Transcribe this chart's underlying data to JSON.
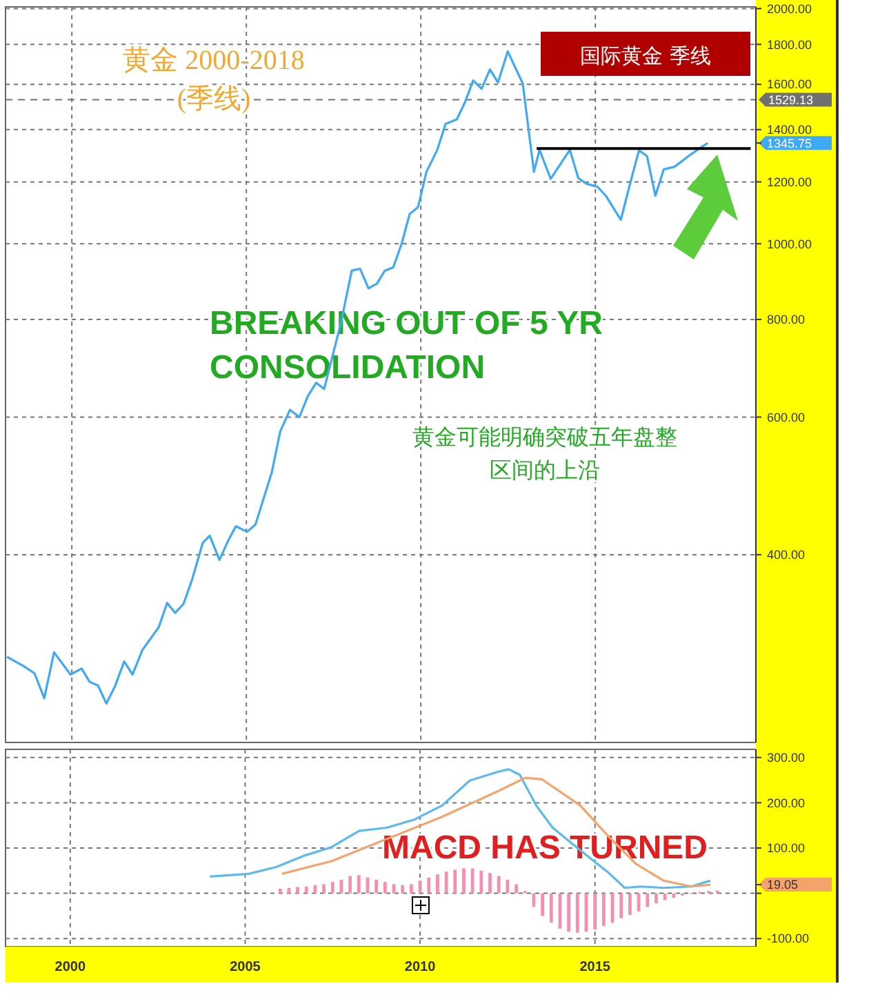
{
  "chart_data": [
    {
      "type": "line",
      "title": "黄金 2000-2018",
      "subtitle": "(季线)",
      "log": true,
      "grid": true,
      "tick_labels": "y",
      "xlim": [
        1998.1,
        2019.6
      ],
      "xticks": [
        2000,
        2005,
        2010,
        2015
      ],
      "ylim": [
        230,
        2010
      ],
      "yticks": [
        {
          "value": 400,
          "label": "400.00"
        },
        {
          "value": 600,
          "label": "600.00"
        },
        {
          "value": 800,
          "label": "800.00"
        },
        {
          "value": 1000,
          "label": "1000.00"
        },
        {
          "value": 1200,
          "label": "1200.00"
        },
        {
          "value": 1345.75,
          "label": "1345.75"
        },
        {
          "value": 1400,
          "label": "1400.00"
        },
        {
          "value": 1600,
          "label": "1600.00"
        },
        {
          "value": 1800,
          "label": "1800.00"
        },
        {
          "value": 2000,
          "label": "2000.00"
        }
      ],
      "series": [
        {
          "color": "#3fa9f5",
          "x": [
            1998.14,
            1998.62,
            1998.93,
            1999.21,
            1999.49,
            1999.96,
            2000.28,
            2000.51,
            2000.75,
            2000.99,
            2001.23,
            2001.5,
            2001.74,
            2002.02,
            2002.49,
            2002.73,
            2002.96,
            2003.2,
            2003.44,
            2003.75,
            2003.95,
            2004.23,
            2004.47,
            2004.7,
            2005.02,
            2005.26,
            2005.73,
            2005.97,
            2006.25,
            2006.52,
            2006.76,
            2007.0,
            2007.23,
            2007.71,
            2008.02,
            2008.26,
            2008.5,
            2008.74,
            2008.97,
            2009.21,
            2009.45,
            2009.68,
            2009.92,
            2010.16,
            2010.47,
            2010.71,
            2011.03,
            2011.26,
            2011.5,
            2011.74,
            2011.98,
            2012.21,
            2012.49,
            2012.92,
            2013.24,
            2013.4,
            2013.72,
            2014.27,
            2014.51,
            2014.74,
            2015.06,
            2015.3,
            2015.73,
            2016.01,
            2016.25,
            2016.48,
            2016.72,
            2016.96,
            2017.27,
            2017.67,
            2017.98,
            2018.22
          ],
          "values": [
            296,
            288,
            282,
            262,
            300,
            281,
            286,
            275,
            272,
            258,
            271,
            292,
            281,
            302,
            323,
            347,
            337,
            346,
            371,
            414,
            423,
            394,
            416,
            435,
            428,
            437,
            510,
            575,
            613,
            600,
            638,
            664,
            652,
            792,
            924,
            929,
            877,
            889,
            924,
            933,
            1000,
            1092,
            1114,
            1236,
            1319,
            1424,
            1443,
            1516,
            1618,
            1579,
            1672,
            1609,
            1763,
            1604,
            1236,
            1319,
            1211,
            1319,
            1214,
            1194,
            1183,
            1152,
            1073,
            1201,
            1317,
            1295,
            1152,
            1245,
            1255,
            1295,
            1324,
            1345.75
          ]
        },
        {
          "color": "#000000",
          "x": [
            2013.32,
            2019.45
          ],
          "values": [
            1324,
            1324
          ]
        }
      ],
      "ref_lines": [
        {
          "axis": "y",
          "value": 1529.13,
          "label": "1529.13",
          "color": "#707070",
          "line_style": "dashed"
        }
      ],
      "annotations": [
        "国际黄金 季线",
        "BREAKING OUT OF 5 YR CONSOLIDATION",
        "黄金可能明确突破五年盘整区间的上沿"
      ]
    },
    {
      "type": "line",
      "grid": true,
      "xlim": [
        1998.15,
        2019.6
      ],
      "xticks": [
        2000,
        2005,
        2010,
        2015
      ],
      "ylim": [
        -118,
        318
      ],
      "yticks": [
        {
          "value": -100,
          "label": "-100.00"
        },
        {
          "value": 0,
          "label": null
        },
        {
          "value": 19.05,
          "label": "19.05"
        },
        {
          "value": 100,
          "label": "100.00"
        },
        {
          "value": 200,
          "label": "200.00"
        },
        {
          "value": 300,
          "label": "300.00"
        }
      ],
      "series": [
        {
          "type": "bar",
          "color": "#f48fb1",
          "x": [
            2006.0,
            2006.25,
            2006.5,
            2006.75,
            2007.0,
            2007.25,
            2007.5,
            2007.75,
            2008.0,
            2008.25,
            2008.5,
            2008.75,
            2009.0,
            2009.25,
            2009.5,
            2009.75,
            2010.0,
            2010.25,
            2010.5,
            2010.75,
            2011.0,
            2011.25,
            2011.5,
            2011.75,
            2012.0,
            2012.25,
            2012.5,
            2012.75,
            2013.0,
            2013.25,
            2013.5,
            2013.75,
            2014.0,
            2014.25,
            2014.5,
            2014.75,
            2015.0,
            2015.25,
            2015.5,
            2015.75,
            2016.0,
            2016.25,
            2016.5,
            2016.75,
            2017.0,
            2017.25,
            2017.5,
            2017.75,
            2018.0,
            2018.25,
            2018.5
          ],
          "values": [
            10,
            12,
            14,
            15,
            18,
            20,
            25,
            30,
            38,
            40,
            35,
            30,
            25,
            20,
            18,
            20,
            28,
            35,
            42,
            48,
            52,
            55,
            55,
            50,
            45,
            38,
            30,
            20,
            5,
            -30,
            -50,
            -65,
            -78,
            -85,
            -87,
            -85,
            -80,
            -72,
            -65,
            -55,
            -48,
            -40,
            -30,
            -22,
            -15,
            -10,
            -5,
            -2,
            3,
            5,
            6
          ]
        },
        {
          "color": "#5bb8f0",
          "x": [
            2003.99,
            2005.1,
            2005.89,
            2006.68,
            2007.47,
            2008.26,
            2009.05,
            2009.84,
            2010.63,
            2011.42,
            2012.21,
            2012.53,
            2012.85,
            2013.32,
            2013.79,
            2014.58,
            2015.38,
            2015.85,
            2016.32,
            2016.96,
            2017.75,
            2018.3
          ],
          "values": [
            37,
            43,
            58,
            83,
            102,
            138,
            145,
            163,
            194,
            249,
            268,
            274,
            262,
            194,
            145,
            95,
            46,
            12,
            15,
            12,
            15,
            28
          ]
        },
        {
          "color": "#f4a46a",
          "x": [
            2006.05,
            2007.47,
            2009.05,
            2010.63,
            2012.21,
            2013.0,
            2013.48,
            2014.58,
            2015.38,
            2016.17,
            2016.96,
            2017.75,
            2018.3
          ],
          "values": [
            43,
            71,
            120,
            169,
            225,
            255,
            252,
            194,
            126,
            65,
            28,
            15,
            19.05
          ]
        }
      ],
      "annotations": [
        "MACD HAS TURNED"
      ]
    }
  ]
}
